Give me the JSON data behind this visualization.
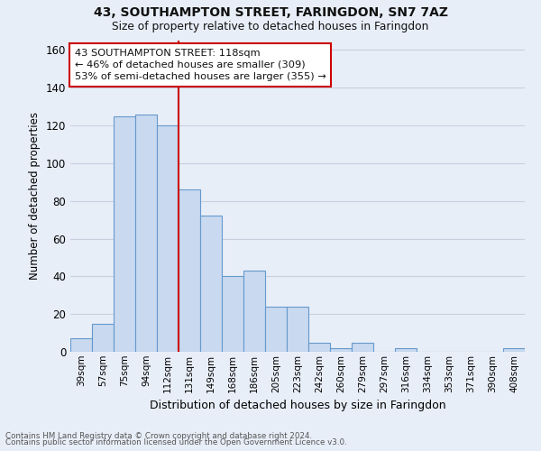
{
  "title": "43, SOUTHAMPTON STREET, FARINGDON, SN7 7AZ",
  "subtitle": "Size of property relative to detached houses in Faringdon",
  "xlabel": "Distribution of detached houses by size in Faringdon",
  "ylabel": "Number of detached properties",
  "footnote1": "Contains HM Land Registry data © Crown copyright and database right 2024.",
  "footnote2": "Contains public sector information licensed under the Open Government Licence v3.0.",
  "annotation_line1": "43 SOUTHAMPTON STREET: 118sqm",
  "annotation_line2": "← 46% of detached houses are smaller (309)",
  "annotation_line3": "53% of semi-detached houses are larger (355) →",
  "bar_labels": [
    "39sqm",
    "57sqm",
    "75sqm",
    "94sqm",
    "112sqm",
    "131sqm",
    "149sqm",
    "168sqm",
    "186sqm",
    "205sqm",
    "223sqm",
    "242sqm",
    "260sqm",
    "279sqm",
    "297sqm",
    "316sqm",
    "334sqm",
    "353sqm",
    "371sqm",
    "390sqm",
    "408sqm"
  ],
  "bar_values": [
    7,
    15,
    125,
    126,
    120,
    86,
    72,
    40,
    43,
    24,
    24,
    5,
    2,
    5,
    0,
    2,
    0,
    0,
    0,
    0,
    2
  ],
  "bar_color": "#c8d9f0",
  "bar_edge_color": "#6699cc",
  "vline_x_index": 4,
  "vline_color": "#cc0000",
  "bg_color": "#e8eef8",
  "grid_color": "#c8d0e0",
  "ylim": [
    0,
    165
  ],
  "yticks": [
    0,
    20,
    40,
    60,
    80,
    100,
    120,
    140,
    160
  ]
}
